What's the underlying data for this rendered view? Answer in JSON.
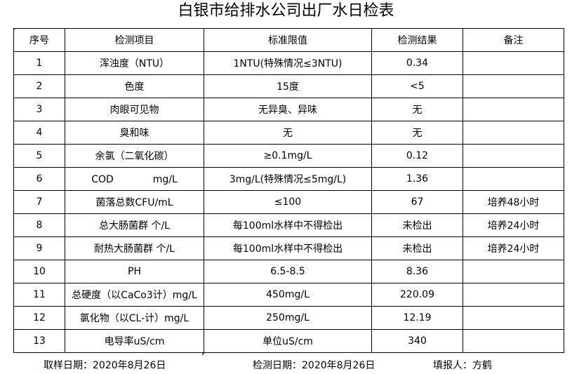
{
  "title": "白银市给排水公司出厂水日检表",
  "headers": [
    "序号",
    "检测项目",
    "标准限值",
    "检测结果",
    "备注"
  ],
  "rows": [
    [
      "1",
      "浑浊度（NTU）",
      "1NTU(特殊情况≤3NTU)",
      "0.34",
      ""
    ],
    [
      "2",
      "色度",
      "15度",
      "<5",
      ""
    ],
    [
      "3",
      "肉眼可见物",
      "无异臭、异味",
      "无",
      ""
    ],
    [
      "4",
      "臭和味",
      "无",
      "无",
      ""
    ],
    [
      "5",
      "余氯（二氧化碳）",
      "≥0.1mg/L",
      "0.12",
      ""
    ],
    [
      "6",
      "COD　　　　mg/L",
      "3mg/L(特殊情况≤5mg/L)",
      "1.36",
      ""
    ],
    [
      "7",
      "菌落总数CFU/mL",
      "≤100",
      "67",
      "培养48小时"
    ],
    [
      "8",
      "总大肠菌群 个/L",
      "每100ml水样中不得检出",
      "未检出",
      "培养24小时"
    ],
    [
      "9",
      "耐热大肠菌群 个/L",
      "每100ml水样中不得检出",
      "未检出",
      "培养24小时"
    ],
    [
      "10",
      "PH",
      "6.5-8.5",
      "8.36",
      ""
    ],
    [
      "11",
      "总硬度（以CaCo3计）mg/L",
      "450mg/L",
      "220.09",
      ""
    ],
    [
      "12",
      "氯化物（以CL-计）mg/L",
      "250mg/L",
      "12.19",
      ""
    ],
    [
      "13",
      "电导率uS/cm",
      "单位uS/cm",
      "340",
      ""
    ]
  ],
  "footer": {
    "sample_date": "取样日期：2020年8月26日",
    "test_date": "检测日期：2020年8月26日",
    "reporter": "填报人：方鹤"
  }
}
